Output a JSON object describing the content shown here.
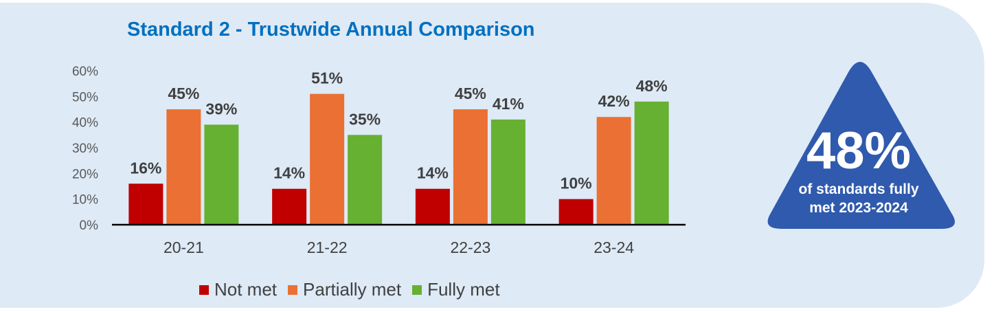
{
  "title": "Standard 2 - Trustwide Annual Comparison",
  "chart_data": {
    "type": "bar",
    "title": "Standard 2 - Trustwide Annual Comparison",
    "categories": [
      "20-21",
      "21-22",
      "22-23",
      "23-24"
    ],
    "series": [
      {
        "name": "Not met",
        "color": "#c00000",
        "values": [
          16,
          14,
          14,
          10
        ]
      },
      {
        "name": "Partially met",
        "color": "#ea7133",
        "values": [
          45,
          51,
          45,
          42
        ]
      },
      {
        "name": "Fully met",
        "color": "#66b032",
        "values": [
          39,
          35,
          41,
          48
        ]
      }
    ],
    "data_labels": [
      [
        "16%",
        "14%",
        "14%",
        "10%"
      ],
      [
        "45%",
        "51%",
        "45%",
        "42%"
      ],
      [
        "39%",
        "35%",
        "41%",
        "48%"
      ]
    ],
    "yticks": [
      "0%",
      "10%",
      "20%",
      "30%",
      "40%",
      "50%",
      "60%"
    ],
    "ylim": [
      0,
      60
    ],
    "yunit": "%",
    "grid": false,
    "legend": "bottom"
  },
  "badge": {
    "value": "48%",
    "line1": "of standards fully",
    "line2": "met 2023-2024",
    "color": "#2f5aad"
  }
}
